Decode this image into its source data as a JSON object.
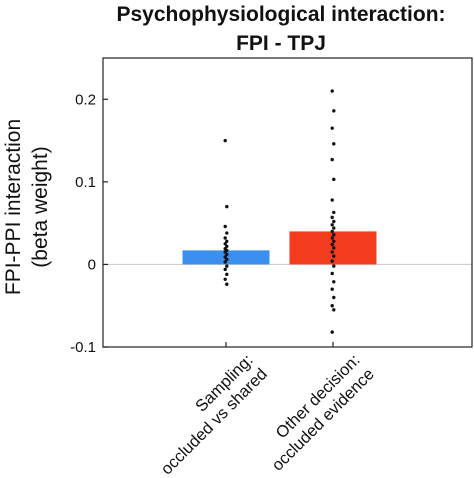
{
  "chart_data": {
    "type": "bar",
    "title": [
      "Psychophysiological interaction:",
      "FPI - TPJ"
    ],
    "ylabel": [
      "FPI-PPI interaction",
      "(beta weight)"
    ],
    "xlabel": "",
    "categories": [
      [
        "Sampling:",
        "occluded vs shared"
      ],
      [
        "Other decision:",
        "occluded evidence"
      ]
    ],
    "values": [
      0.017,
      0.04
    ],
    "ylim": [
      -0.1,
      0.25
    ],
    "yticks": [
      -0.1,
      0,
      0.1,
      0.2
    ],
    "ytick_labels": [
      "-0.1",
      "0",
      "0.1",
      "0.2"
    ],
    "grid": false,
    "zero_line": true,
    "legend": "none",
    "colors": [
      "#3a8fef",
      "#f23c1d"
    ],
    "points_color": "#111111",
    "zero_line_color": "#c8c8c8",
    "points": [
      [
        0.15,
        0.07,
        0.046,
        0.038,
        0.032,
        0.028,
        0.025,
        0.022,
        0.019,
        0.017,
        0.015,
        0.012,
        0.009,
        0.006,
        0.003,
        -0.002,
        -0.006,
        -0.012,
        -0.018,
        -0.024
      ],
      [
        0.21,
        0.186,
        0.165,
        0.146,
        0.127,
        0.103,
        0.078,
        0.063,
        0.057,
        0.052,
        0.048,
        0.044,
        0.04,
        0.036,
        0.032,
        0.028,
        0.024,
        0.02,
        0.015,
        0.01,
        0.004,
        -0.002,
        -0.011,
        -0.021,
        -0.03,
        -0.04,
        -0.05,
        -0.055,
        -0.082
      ]
    ]
  }
}
